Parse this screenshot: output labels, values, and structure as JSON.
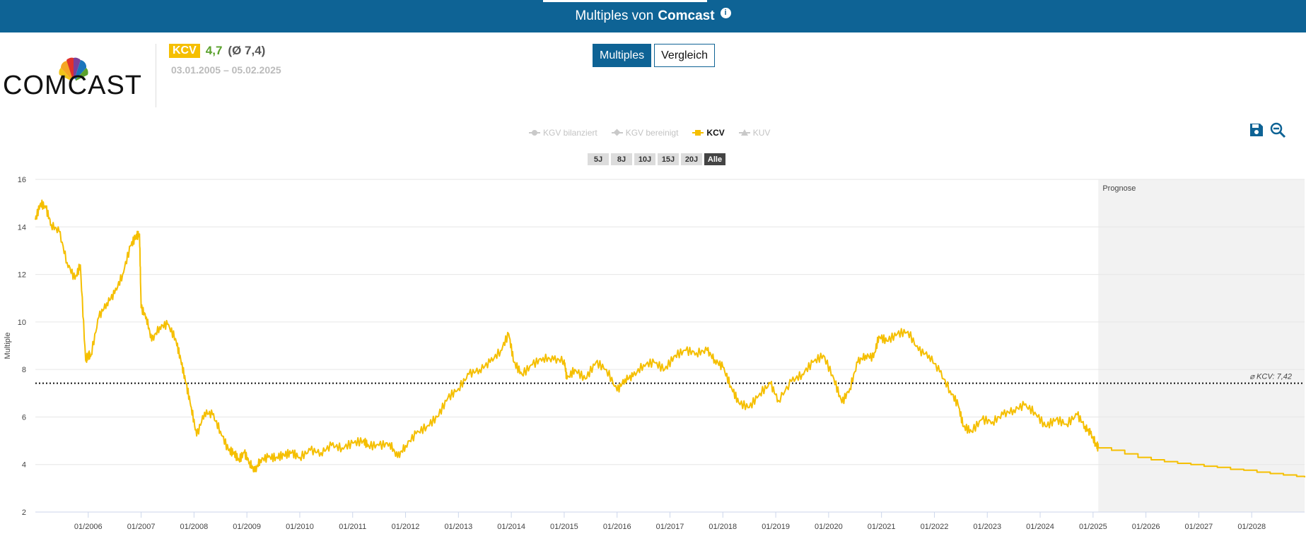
{
  "header": {
    "title_prefix": "Multiples von",
    "company": "Comcast",
    "info_icon": "info-icon"
  },
  "logo": {
    "text": "COMCAST",
    "icon": "peacock-logo"
  },
  "kpi": {
    "badge": "KCV",
    "value": "4,7",
    "avg": "(Ø 7,4)",
    "range": "03.01.2005 – 05.02.2025"
  },
  "tabs": [
    {
      "label": "Multiples",
      "active": true
    },
    {
      "label": "Vergleich",
      "active": false
    }
  ],
  "legend": [
    {
      "label": "KGV bilanziert",
      "active": false,
      "marker": "circle"
    },
    {
      "label": "KGV bereinigt",
      "active": false,
      "marker": "diamond"
    },
    {
      "label": "KCV",
      "active": true,
      "marker": "square"
    },
    {
      "label": "KUV",
      "active": false,
      "marker": "triangle"
    }
  ],
  "ranges": [
    {
      "label": "5J",
      "active": false
    },
    {
      "label": "8J",
      "active": false
    },
    {
      "label": "10J",
      "active": false
    },
    {
      "label": "15J",
      "active": false
    },
    {
      "label": "20J",
      "active": false
    },
    {
      "label": "Alle",
      "active": true
    }
  ],
  "tools": {
    "save_icon": "save-icon",
    "zoom_icon": "zoom-out-icon"
  },
  "colors": {
    "brand": "#0e6395",
    "series": "#f5bf00",
    "positive": "#5aa12c",
    "forecast_bg": "#f2f2f2"
  },
  "chart_data": {
    "type": "line",
    "ylabel": "Multiple",
    "ylim": [
      2,
      16
    ],
    "yticks": [
      2,
      4,
      6,
      8,
      10,
      12,
      14,
      16
    ],
    "xlim": [
      2005.0,
      2029.0
    ],
    "xticks": [
      "01/2006",
      "01/2007",
      "01/2008",
      "01/2009",
      "01/2010",
      "01/2011",
      "01/2012",
      "01/2013",
      "01/2014",
      "01/2015",
      "01/2016",
      "01/2017",
      "01/2018",
      "01/2019",
      "01/2020",
      "01/2021",
      "01/2022",
      "01/2023",
      "01/2024",
      "01/2025",
      "01/2026",
      "01/2027",
      "01/2028"
    ],
    "forecast_start": 2025.1,
    "forecast_label": "Prognose",
    "average": {
      "value": 7.42,
      "label": "⌀ KCV: 7,42"
    },
    "series": [
      {
        "name": "KCV",
        "x": [
          2005.0,
          2005.1,
          2005.2,
          2005.3,
          2005.45,
          2005.6,
          2005.75,
          2005.85,
          2005.95,
          2006.0,
          2006.05,
          2006.2,
          2006.35,
          2006.5,
          2006.65,
          2006.8,
          2006.9,
          2006.97,
          2007.0,
          2007.1,
          2007.2,
          2007.35,
          2007.5,
          2007.65,
          2007.75,
          2007.85,
          2007.95,
          2008.05,
          2008.2,
          2008.35,
          2008.5,
          2008.65,
          2008.75,
          2008.85,
          2008.95,
          2009.05,
          2009.15,
          2009.25,
          2009.4,
          2009.55,
          2009.7,
          2009.85,
          2010.0,
          2010.2,
          2010.4,
          2010.6,
          2010.8,
          2011.0,
          2011.2,
          2011.3,
          2011.5,
          2011.7,
          2011.85,
          2012.0,
          2012.2,
          2012.4,
          2012.6,
          2012.8,
          2013.0,
          2013.2,
          2013.4,
          2013.6,
          2013.8,
          2013.95,
          2014.05,
          2014.2,
          2014.4,
          2014.6,
          2014.8,
          2015.0,
          2015.05,
          2015.2,
          2015.4,
          2015.6,
          2015.8,
          2016.0,
          2016.15,
          2016.3,
          2016.5,
          2016.7,
          2016.9,
          2017.1,
          2017.3,
          2017.5,
          2017.7,
          2017.85,
          2018.0,
          2018.15,
          2018.3,
          2018.5,
          2018.7,
          2018.9,
          2019.05,
          2019.3,
          2019.5,
          2019.7,
          2019.9,
          2020.1,
          2020.25,
          2020.4,
          2020.55,
          2020.7,
          2020.85,
          2020.95,
          2021.1,
          2021.3,
          2021.5,
          2021.7,
          2021.9,
          2022.1,
          2022.3,
          2022.45,
          2022.55,
          2022.7,
          2022.9,
          2023.1,
          2023.3,
          2023.5,
          2023.7,
          2023.9,
          2024.1,
          2024.3,
          2024.5,
          2024.7,
          2024.85,
          2024.95,
          2025.05,
          2025.1
        ],
        "y": [
          14.3,
          15.0,
          14.8,
          14.1,
          13.8,
          12.5,
          11.8,
          12.4,
          8.4,
          8.6,
          8.6,
          10.2,
          10.8,
          11.2,
          12.0,
          13.2,
          13.6,
          13.7,
          10.6,
          10.2,
          9.2,
          9.8,
          9.9,
          9.3,
          8.4,
          7.4,
          6.4,
          5.2,
          6.2,
          6.1,
          5.4,
          4.6,
          4.5,
          4.2,
          4.5,
          4.1,
          3.7,
          4.2,
          4.3,
          4.3,
          4.4,
          4.5,
          4.3,
          4.6,
          4.5,
          4.8,
          4.7,
          4.9,
          5.0,
          4.8,
          4.8,
          4.9,
          4.3,
          4.8,
          5.3,
          5.6,
          6.0,
          6.8,
          7.2,
          7.8,
          8.0,
          8.3,
          8.8,
          9.5,
          8.3,
          7.8,
          8.2,
          8.5,
          8.4,
          8.4,
          7.6,
          8.0,
          7.6,
          8.3,
          8.0,
          7.1,
          7.6,
          7.7,
          8.2,
          8.3,
          8.0,
          8.6,
          8.8,
          8.7,
          8.8,
          8.4,
          8.1,
          7.3,
          6.6,
          6.4,
          7.0,
          7.4,
          6.7,
          7.5,
          7.8,
          8.3,
          8.6,
          7.6,
          6.6,
          7.2,
          8.3,
          8.6,
          8.5,
          9.4,
          9.2,
          9.5,
          9.6,
          8.8,
          8.6,
          7.9,
          7.1,
          6.5,
          5.6,
          5.4,
          5.9,
          5.8,
          6.1,
          6.3,
          6.5,
          6.2,
          5.6,
          5.9,
          5.7,
          6.1,
          5.6,
          5.3,
          4.9,
          4.7
        ]
      },
      {
        "name": "Prognose",
        "x": [
          2025.1,
          2025.35,
          2025.6,
          2025.85,
          2026.1,
          2026.35,
          2026.6,
          2026.85,
          2027.1,
          2027.35,
          2027.6,
          2027.85,
          2028.1,
          2028.35,
          2028.6,
          2028.85,
          2029.0
        ],
        "y": [
          4.7,
          4.6,
          4.45,
          4.3,
          4.2,
          4.12,
          4.05,
          4.0,
          3.93,
          3.88,
          3.8,
          3.76,
          3.68,
          3.62,
          3.56,
          3.5,
          3.46
        ]
      }
    ]
  }
}
